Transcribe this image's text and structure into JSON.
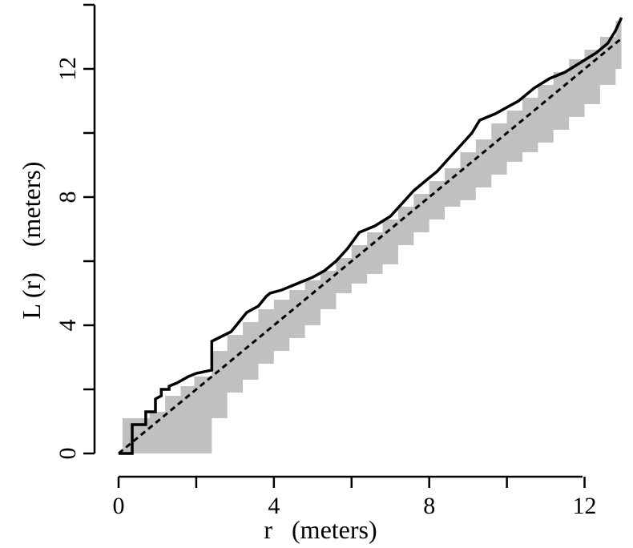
{
  "chart_data": {
    "type": "line",
    "xlabel": "r   (meters)",
    "ylabel": "L (r)    (meters)",
    "xlim": [
      0,
      13
    ],
    "ylim": [
      0,
      14
    ],
    "x_ticks": [
      0,
      2,
      4,
      6,
      8,
      10,
      12
    ],
    "x_tick_labels": [
      "0",
      "",
      "4",
      "",
      "8",
      "",
      "12"
    ],
    "y_ticks": [
      0,
      2,
      4,
      6,
      8,
      10,
      12,
      14
    ],
    "y_tick_labels": [
      "0",
      "",
      "4",
      "",
      "8",
      "",
      "12",
      ""
    ],
    "grid": false,
    "legend": "none",
    "colors": {
      "observed": "#000000",
      "expected": "#000000",
      "envelope": "#c0c0c0"
    },
    "series": [
      {
        "style": "solid",
        "x": [
          0,
          0.2,
          0.35,
          0.35,
          0.7,
          0.7,
          0.95,
          0.95,
          1.1,
          1.1,
          1.3,
          1.3,
          1.5,
          1.8,
          2.0,
          2.4,
          2.4,
          2.9,
          3.1,
          3.3,
          3.6,
          3.8,
          3.9,
          4.2,
          4.6,
          5.0,
          5.3,
          5.6,
          5.9,
          6.2,
          6.6,
          7.0,
          7.3,
          7.6,
          7.9,
          8.2,
          8.5,
          8.8,
          9.1,
          9.3,
          9.7,
          10.0,
          10.3,
          10.7,
          11.1,
          11.5,
          11.9,
          12.3,
          12.6,
          12.8,
          12.95
        ],
        "y": [
          0,
          0,
          0,
          0.9,
          0.9,
          1.3,
          1.3,
          1.7,
          1.8,
          2.0,
          2.0,
          2.1,
          2.2,
          2.4,
          2.5,
          2.6,
          3.5,
          3.8,
          4.1,
          4.4,
          4.6,
          4.9,
          5.0,
          5.1,
          5.3,
          5.5,
          5.7,
          6.0,
          6.4,
          6.9,
          7.1,
          7.4,
          7.8,
          8.2,
          8.5,
          8.8,
          9.2,
          9.6,
          10.0,
          10.4,
          10.6,
          10.8,
          11.0,
          11.4,
          11.7,
          11.9,
          12.2,
          12.5,
          12.8,
          13.2,
          13.6
        ]
      },
      {
        "style": "dashed",
        "x": [
          0,
          12.95
        ],
        "y": [
          0,
          12.95
        ]
      }
    ],
    "envelope": {
      "x": [
        0.1,
        0.4,
        0.8,
        1.2,
        1.6,
        1.95,
        2.4,
        2.8,
        3.2,
        3.6,
        4.0,
        4.4,
        4.8,
        5.2,
        5.6,
        6.0,
        6.4,
        6.8,
        7.2,
        7.6,
        8.0,
        8.4,
        8.8,
        9.2,
        9.6,
        10.0,
        10.4,
        10.8,
        11.2,
        11.6,
        12.0,
        12.4,
        12.8,
        12.95
      ],
      "upper": [
        1.1,
        1.1,
        1.3,
        1.8,
        2.1,
        2.4,
        3.2,
        3.7,
        4.1,
        4.5,
        4.8,
        5.1,
        5.4,
        5.7,
        6.1,
        6.5,
        6.9,
        7.3,
        7.7,
        8.1,
        8.5,
        8.9,
        9.4,
        9.8,
        10.3,
        10.7,
        11.1,
        11.5,
        11.9,
        12.3,
        12.6,
        13.0,
        13.5,
        13.9
      ],
      "lower": [
        0,
        0,
        0,
        0,
        0,
        0,
        1.1,
        1.9,
        2.3,
        2.8,
        3.2,
        3.6,
        4.0,
        4.5,
        5.0,
        5.3,
        5.6,
        5.9,
        6.5,
        6.9,
        7.3,
        7.7,
        7.9,
        8.3,
        8.7,
        9.1,
        9.4,
        9.7,
        10.1,
        10.5,
        10.9,
        11.5,
        12.0,
        12.2
      ]
    }
  }
}
